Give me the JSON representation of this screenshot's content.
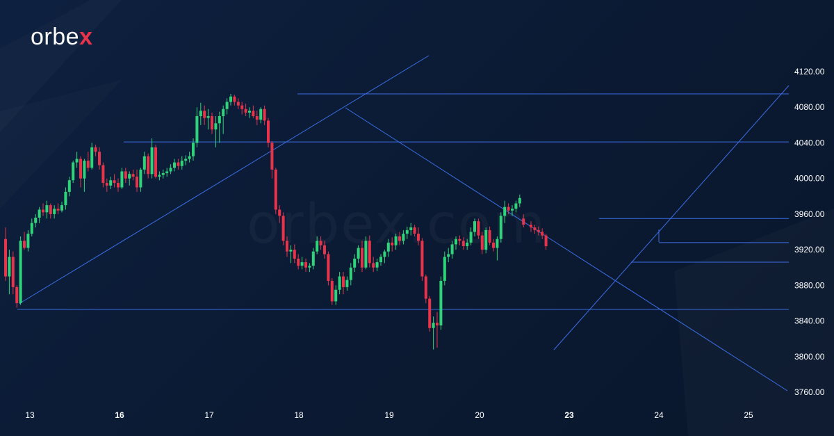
{
  "brand": {
    "name": "orbex",
    "watermark": "orbex.com",
    "logo_x_color": "#e8344a"
  },
  "colors": {
    "background": "#0c1b33",
    "up": "#2fd47a",
    "down": "#e8344a",
    "lines": "#3b6fe6",
    "text": "#ffffff"
  },
  "chart_data": {
    "type": "candlestick",
    "title": "",
    "xlabel": "",
    "ylabel": "",
    "ylim": [
      3760,
      4120
    ],
    "y_ticks": [
      "4120.00",
      "4080.00",
      "4040.00",
      "4000.00",
      "3960.00",
      "3920.00",
      "3880.00",
      "3840.00",
      "3800.00",
      "3760.00"
    ],
    "x_ticks": [
      {
        "label": "13",
        "bold": false,
        "index": 0
      },
      {
        "label": "16",
        "bold": true,
        "index": 24
      },
      {
        "label": "17",
        "bold": false,
        "index": 48
      },
      {
        "label": "18",
        "bold": false,
        "index": 72
      },
      {
        "label": "19",
        "bold": false,
        "index": 96
      },
      {
        "label": "20",
        "bold": false,
        "index": 120
      },
      {
        "label": "23",
        "bold": true,
        "index": 144
      },
      {
        "label": "24",
        "bold": false,
        "index": 168
      },
      {
        "label": "25",
        "bold": false,
        "index": 192
      }
    ],
    "price_levels": [
      4095,
      4041,
      3955,
      3928,
      3906,
      3853
    ],
    "candles": [
      {
        "o": 3932,
        "h": 3945,
        "l": 3885,
        "c": 3890
      },
      {
        "o": 3890,
        "h": 3920,
        "l": 3870,
        "c": 3912
      },
      {
        "o": 3912,
        "h": 3918,
        "l": 3870,
        "c": 3878
      },
      {
        "o": 3878,
        "h": 3880,
        "l": 3855,
        "c": 3860
      },
      {
        "o": 3860,
        "h": 3935,
        "l": 3858,
        "c": 3930
      },
      {
        "o": 3930,
        "h": 3940,
        "l": 3920,
        "c": 3922
      },
      {
        "o": 3922,
        "h": 3942,
        "l": 3918,
        "c": 3938
      },
      {
        "o": 3938,
        "h": 3955,
        "l": 3935,
        "c": 3950
      },
      {
        "o": 3950,
        "h": 3960,
        "l": 3945,
        "c": 3956
      },
      {
        "o": 3956,
        "h": 3968,
        "l": 3950,
        "c": 3965
      },
      {
        "o": 3965,
        "h": 3972,
        "l": 3958,
        "c": 3962
      },
      {
        "o": 3962,
        "h": 3975,
        "l": 3955,
        "c": 3970
      },
      {
        "o": 3970,
        "h": 3972,
        "l": 3955,
        "c": 3960
      },
      {
        "o": 3960,
        "h": 3970,
        "l": 3955,
        "c": 3966
      },
      {
        "o": 3966,
        "h": 3972,
        "l": 3960,
        "c": 3964
      },
      {
        "o": 3964,
        "h": 3974,
        "l": 3962,
        "c": 3970
      },
      {
        "o": 3970,
        "h": 3990,
        "l": 3965,
        "c": 3985
      },
      {
        "o": 3985,
        "h": 4002,
        "l": 3980,
        "c": 3998
      },
      {
        "o": 3998,
        "h": 4020,
        "l": 3995,
        "c": 4018
      },
      {
        "o": 4018,
        "h": 4030,
        "l": 4012,
        "c": 4022
      },
      {
        "o": 4022,
        "h": 4025,
        "l": 3990,
        "c": 4000
      },
      {
        "o": 4000,
        "h": 4022,
        "l": 3985,
        "c": 4020
      },
      {
        "o": 4020,
        "h": 4030,
        "l": 4008,
        "c": 4012
      },
      {
        "o": 4012,
        "h": 4040,
        "l": 4010,
        "c": 4035
      },
      {
        "o": 4035,
        "h": 4038,
        "l": 4025,
        "c": 4030
      },
      {
        "o": 4030,
        "h": 4035,
        "l": 4010,
        "c": 4015
      },
      {
        "o": 4015,
        "h": 4018,
        "l": 3990,
        "c": 3995
      },
      {
        "o": 3995,
        "h": 4000,
        "l": 3985,
        "c": 3992
      },
      {
        "o": 3992,
        "h": 4002,
        "l": 3988,
        "c": 3998
      },
      {
        "o": 3998,
        "h": 4005,
        "l": 3990,
        "c": 3995
      },
      {
        "o": 3995,
        "h": 4000,
        "l": 3985,
        "c": 3990
      },
      {
        "o": 3990,
        "h": 4012,
        "l": 3988,
        "c": 4008
      },
      {
        "o": 4008,
        "h": 4012,
        "l": 3995,
        "c": 4000
      },
      {
        "o": 4000,
        "h": 4008,
        "l": 3992,
        "c": 4005
      },
      {
        "o": 4005,
        "h": 4010,
        "l": 3998,
        "c": 4002
      },
      {
        "o": 4002,
        "h": 4010,
        "l": 3985,
        "c": 3990
      },
      {
        "o": 3990,
        "h": 4012,
        "l": 3985,
        "c": 4010
      },
      {
        "o": 4010,
        "h": 4030,
        "l": 4005,
        "c": 4025
      },
      {
        "o": 4025,
        "h": 4028,
        "l": 4000,
        "c": 4005
      },
      {
        "o": 4005,
        "h": 4045,
        "l": 4000,
        "c": 4035
      },
      {
        "o": 4035,
        "h": 4038,
        "l": 4000,
        "c": 4002
      },
      {
        "o": 4002,
        "h": 4008,
        "l": 3998,
        "c": 4004
      },
      {
        "o": 4004,
        "h": 4010,
        "l": 4000,
        "c": 4006
      },
      {
        "o": 4006,
        "h": 4012,
        "l": 4002,
        "c": 4008
      },
      {
        "o": 4008,
        "h": 4016,
        "l": 4005,
        "c": 4012
      },
      {
        "o": 4012,
        "h": 4022,
        "l": 4008,
        "c": 4018
      },
      {
        "o": 4018,
        "h": 4022,
        "l": 4010,
        "c": 4014
      },
      {
        "o": 4014,
        "h": 4025,
        "l": 4010,
        "c": 4020
      },
      {
        "o": 4020,
        "h": 4026,
        "l": 4015,
        "c": 4022
      },
      {
        "o": 4022,
        "h": 4030,
        "l": 4018,
        "c": 4025
      },
      {
        "o": 4025,
        "h": 4045,
        "l": 4020,
        "c": 4040
      },
      {
        "o": 4040,
        "h": 4080,
        "l": 4035,
        "c": 4070
      },
      {
        "o": 4070,
        "h": 4085,
        "l": 4060,
        "c": 4076
      },
      {
        "o": 4076,
        "h": 4082,
        "l": 4060,
        "c": 4068
      },
      {
        "o": 4068,
        "h": 4078,
        "l": 4055,
        "c": 4070
      },
      {
        "o": 4070,
        "h": 4074,
        "l": 4050,
        "c": 4055
      },
      {
        "o": 4055,
        "h": 4070,
        "l": 4035,
        "c": 4062
      },
      {
        "o": 4062,
        "h": 4075,
        "l": 4040,
        "c": 4070
      },
      {
        "o": 4070,
        "h": 4082,
        "l": 4050,
        "c": 4078
      },
      {
        "o": 4078,
        "h": 4090,
        "l": 4072,
        "c": 4086
      },
      {
        "o": 4086,
        "h": 4095,
        "l": 4082,
        "c": 4092
      },
      {
        "o": 4092,
        "h": 4094,
        "l": 4082,
        "c": 4086
      },
      {
        "o": 4086,
        "h": 4090,
        "l": 4078,
        "c": 4082
      },
      {
        "o": 4082,
        "h": 4086,
        "l": 4072,
        "c": 4078
      },
      {
        "o": 4078,
        "h": 4084,
        "l": 4070,
        "c": 4074
      },
      {
        "o": 4074,
        "h": 4080,
        "l": 4068,
        "c": 4076
      },
      {
        "o": 4076,
        "h": 4082,
        "l": 4068,
        "c": 4070
      },
      {
        "o": 4070,
        "h": 4076,
        "l": 4060,
        "c": 4066
      },
      {
        "o": 4066,
        "h": 4080,
        "l": 4062,
        "c": 4078
      },
      {
        "o": 4078,
        "h": 4082,
        "l": 4060,
        "c": 4065
      },
      {
        "o": 4065,
        "h": 4068,
        "l": 4035,
        "c": 4040
      },
      {
        "o": 4040,
        "h": 4042,
        "l": 4000,
        "c": 4010
      },
      {
        "o": 4010,
        "h": 4012,
        "l": 3960,
        "c": 3965
      },
      {
        "o": 3965,
        "h": 3970,
        "l": 3950,
        "c": 3958
      },
      {
        "o": 3958,
        "h": 3962,
        "l": 3925,
        "c": 3930
      },
      {
        "o": 3930,
        "h": 3935,
        "l": 3912,
        "c": 3918
      },
      {
        "o": 3918,
        "h": 3925,
        "l": 3905,
        "c": 3920
      },
      {
        "o": 3920,
        "h": 3926,
        "l": 3905,
        "c": 3910
      },
      {
        "o": 3910,
        "h": 3915,
        "l": 3898,
        "c": 3902
      },
      {
        "o": 3902,
        "h": 3912,
        "l": 3898,
        "c": 3906
      },
      {
        "o": 3906,
        "h": 3910,
        "l": 3895,
        "c": 3900
      },
      {
        "o": 3900,
        "h": 3905,
        "l": 3895,
        "c": 3902
      },
      {
        "o": 3902,
        "h": 3922,
        "l": 3898,
        "c": 3918
      },
      {
        "o": 3918,
        "h": 3935,
        "l": 3915,
        "c": 3930
      },
      {
        "o": 3930,
        "h": 3935,
        "l": 3920,
        "c": 3925
      },
      {
        "o": 3925,
        "h": 3930,
        "l": 3910,
        "c": 3915
      },
      {
        "o": 3915,
        "h": 3918,
        "l": 3880,
        "c": 3885
      },
      {
        "o": 3885,
        "h": 3888,
        "l": 3858,
        "c": 3862
      },
      {
        "o": 3862,
        "h": 3880,
        "l": 3858,
        "c": 3875
      },
      {
        "o": 3875,
        "h": 3895,
        "l": 3870,
        "c": 3890
      },
      {
        "o": 3890,
        "h": 3895,
        "l": 3870,
        "c": 3878
      },
      {
        "o": 3878,
        "h": 3890,
        "l": 3874,
        "c": 3886
      },
      {
        "o": 3886,
        "h": 3905,
        "l": 3880,
        "c": 3900
      },
      {
        "o": 3900,
        "h": 3915,
        "l": 3895,
        "c": 3910
      },
      {
        "o": 3910,
        "h": 3925,
        "l": 3905,
        "c": 3922
      },
      {
        "o": 3922,
        "h": 3930,
        "l": 3895,
        "c": 3900
      },
      {
        "o": 3900,
        "h": 3935,
        "l": 3898,
        "c": 3930
      },
      {
        "o": 3930,
        "h": 3936,
        "l": 3900,
        "c": 3905
      },
      {
        "o": 3905,
        "h": 3912,
        "l": 3895,
        "c": 3900
      },
      {
        "o": 3900,
        "h": 3910,
        "l": 3896,
        "c": 3906
      },
      {
        "o": 3906,
        "h": 3915,
        "l": 3902,
        "c": 3912
      },
      {
        "o": 3912,
        "h": 3920,
        "l": 3905,
        "c": 3918
      },
      {
        "o": 3918,
        "h": 3932,
        "l": 3912,
        "c": 3928
      },
      {
        "o": 3928,
        "h": 3934,
        "l": 3918,
        "c": 3925
      },
      {
        "o": 3925,
        "h": 3938,
        "l": 3920,
        "c": 3935
      },
      {
        "o": 3935,
        "h": 3940,
        "l": 3925,
        "c": 3930
      },
      {
        "o": 3930,
        "h": 3942,
        "l": 3926,
        "c": 3938
      },
      {
        "o": 3938,
        "h": 3946,
        "l": 3932,
        "c": 3942
      },
      {
        "o": 3942,
        "h": 3950,
        "l": 3936,
        "c": 3945
      },
      {
        "o": 3945,
        "h": 3948,
        "l": 3935,
        "c": 3938
      },
      {
        "o": 3938,
        "h": 3945,
        "l": 3925,
        "c": 3930
      },
      {
        "o": 3930,
        "h": 3933,
        "l": 3885,
        "c": 3890
      },
      {
        "o": 3890,
        "h": 3892,
        "l": 3860,
        "c": 3865
      },
      {
        "o": 3865,
        "h": 3868,
        "l": 3828,
        "c": 3832
      },
      {
        "o": 3832,
        "h": 3845,
        "l": 3808,
        "c": 3838
      },
      {
        "o": 3838,
        "h": 3850,
        "l": 3810,
        "c": 3835
      },
      {
        "o": 3835,
        "h": 3890,
        "l": 3830,
        "c": 3885
      },
      {
        "o": 3885,
        "h": 3918,
        "l": 3880,
        "c": 3912
      },
      {
        "o": 3912,
        "h": 3922,
        "l": 3906,
        "c": 3915
      },
      {
        "o": 3915,
        "h": 3930,
        "l": 3910,
        "c": 3926
      },
      {
        "o": 3926,
        "h": 3935,
        "l": 3920,
        "c": 3932
      },
      {
        "o": 3932,
        "h": 3936,
        "l": 3925,
        "c": 3930
      },
      {
        "o": 3930,
        "h": 3934,
        "l": 3920,
        "c": 3924
      },
      {
        "o": 3924,
        "h": 3932,
        "l": 3920,
        "c": 3928
      },
      {
        "o": 3928,
        "h": 3945,
        "l": 3925,
        "c": 3940
      },
      {
        "o": 3940,
        "h": 3955,
        "l": 3935,
        "c": 3952
      },
      {
        "o": 3952,
        "h": 3955,
        "l": 3932,
        "c": 3936
      },
      {
        "o": 3936,
        "h": 3940,
        "l": 3915,
        "c": 3920
      },
      {
        "o": 3920,
        "h": 3945,
        "l": 3916,
        "c": 3942
      },
      {
        "o": 3942,
        "h": 3946,
        "l": 3925,
        "c": 3928
      },
      {
        "o": 3928,
        "h": 3932,
        "l": 3918,
        "c": 3922
      },
      {
        "o": 3922,
        "h": 3935,
        "l": 3908,
        "c": 3932
      },
      {
        "o": 3932,
        "h": 3962,
        "l": 3928,
        "c": 3958
      },
      {
        "o": 3958,
        "h": 3975,
        "l": 3950,
        "c": 3968
      },
      {
        "o": 3968,
        "h": 3972,
        "l": 3960,
        "c": 3964
      },
      {
        "o": 3964,
        "h": 3970,
        "l": 3958,
        "c": 3966
      },
      {
        "o": 3966,
        "h": 3975,
        "l": 3962,
        "c": 3972
      },
      {
        "o": 3972,
        "h": 3982,
        "l": 3968,
        "c": 3978
      },
      {
        "o": 3955,
        "h": 3960,
        "l": 3945,
        "c": 3948
      },
      {
        "o": 3948,
        "h": 3952,
        "l": 3940,
        "c": 3945
      },
      {
        "o": 3945,
        "h": 3948,
        "l": 3938,
        "c": 3942
      },
      {
        "o": 3942,
        "h": 3946,
        "l": 3936,
        "c": 3940
      },
      {
        "o": 3940,
        "h": 3944,
        "l": 3932,
        "c": 3936
      },
      {
        "o": 3936,
        "h": 3938,
        "l": 3920,
        "c": 3924
      }
    ]
  }
}
